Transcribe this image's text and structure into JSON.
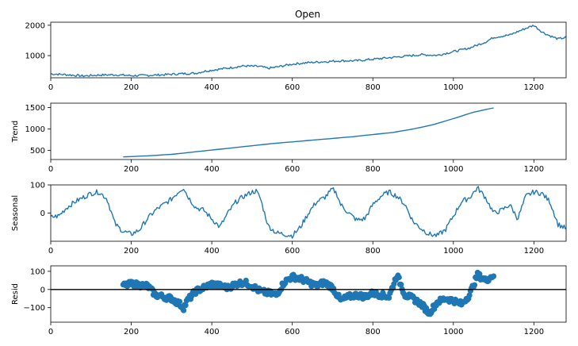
{
  "figure": {
    "title": "Open"
  },
  "colors": {
    "series": "#1f77b4",
    "axis": "#000000",
    "background": "#ffffff"
  },
  "chart_data": [
    {
      "id": "observed",
      "type": "line",
      "title": "Open",
      "xlabel": "",
      "ylabel": "",
      "xlim": [
        0,
        1280
      ],
      "ylim": [
        270,
        2100
      ],
      "xticks": [
        0,
        200,
        400,
        600,
        800,
        1000,
        1200
      ],
      "yticks": [
        1000,
        2000
      ],
      "grid": false,
      "noise": 35,
      "series": [
        {
          "x": [
            0,
            40,
            80,
            120,
            160,
            200,
            240,
            280,
            320,
            360,
            380,
            400,
            440,
            480,
            520,
            540,
            560,
            600,
            640,
            680,
            720,
            760,
            800,
            840,
            880,
            920,
            960,
            1000,
            1040,
            1080,
            1100,
            1140,
            1180,
            1200,
            1220,
            1240,
            1260,
            1280
          ],
          "values": [
            400,
            370,
            330,
            360,
            370,
            340,
            350,
            370,
            400,
            420,
            480,
            520,
            590,
            660,
            640,
            580,
            620,
            720,
            770,
            800,
            830,
            830,
            880,
            930,
            980,
            1030,
            1010,
            1130,
            1250,
            1450,
            1600,
            1680,
            1900,
            2000,
            1780,
            1650,
            1550,
            1600
          ]
        }
      ]
    },
    {
      "id": "trend",
      "type": "line",
      "title": "",
      "xlabel": "",
      "ylabel": "Trend",
      "xlim": [
        0,
        1280
      ],
      "ylim": [
        290,
        1600
      ],
      "xticks": [
        0,
        200,
        400,
        600,
        800,
        1000,
        1200
      ],
      "yticks": [
        500,
        1000,
        1500
      ],
      "grid": false,
      "noise": 0,
      "series": [
        {
          "x": [
            180,
            250,
            300,
            350,
            400,
            450,
            500,
            550,
            600,
            650,
            700,
            750,
            800,
            850,
            900,
            950,
            1000,
            1050,
            1100
          ],
          "values": [
            350,
            380,
            410,
            460,
            510,
            560,
            610,
            660,
            700,
            740,
            780,
            820,
            870,
            920,
            1000,
            1100,
            1240,
            1390,
            1490
          ]
        }
      ]
    },
    {
      "id": "seasonal",
      "type": "line",
      "title": "",
      "xlabel": "",
      "ylabel": "Seasonal",
      "xlim": [
        0,
        1280
      ],
      "ylim": [
        -100,
        100
      ],
      "xticks": [
        0,
        200,
        400,
        600,
        800,
        1000,
        1200
      ],
      "yticks": [
        0,
        100
      ],
      "grid": false,
      "noise": 9,
      "series": [
        {
          "x": [
            0,
            20,
            40,
            60,
            80,
            100,
            120,
            140,
            160,
            180,
            200,
            220,
            240,
            260,
            280,
            300,
            320,
            330,
            340,
            360,
            380,
            400,
            420,
            440,
            460,
            480,
            500,
            510,
            520,
            540,
            560,
            580,
            600,
            620,
            640,
            660,
            680,
            700,
            710,
            720,
            740,
            760,
            780,
            800,
            820,
            840,
            860,
            880,
            900,
            920,
            940,
            960,
            980,
            1000,
            1020,
            1040,
            1060,
            1080,
            1100,
            1120,
            1140,
            1160,
            1180,
            1200,
            1220,
            1240,
            1260,
            1280
          ],
          "values": [
            -15,
            -10,
            20,
            40,
            55,
            70,
            75,
            50,
            -40,
            -65,
            -75,
            -60,
            -20,
            10,
            30,
            50,
            80,
            90,
            60,
            20,
            10,
            -20,
            -50,
            0,
            40,
            60,
            75,
            78,
            55,
            -45,
            -70,
            -75,
            -80,
            -50,
            0,
            40,
            55,
            85,
            70,
            30,
            0,
            -25,
            -20,
            30,
            60,
            75,
            60,
            30,
            -30,
            -55,
            -75,
            -80,
            -60,
            -10,
            40,
            55,
            90,
            55,
            0,
            10,
            30,
            -20,
            60,
            75,
            70,
            40,
            -40,
            -55
          ]
        }
      ]
    },
    {
      "id": "resid",
      "type": "scatter",
      "title": "",
      "xlabel": "",
      "ylabel": "Resid",
      "xlim": [
        0,
        1280
      ],
      "ylim": [
        -180,
        130
      ],
      "xticks": [
        0,
        200,
        400,
        600,
        800,
        1000,
        1200
      ],
      "yticks": [
        -100,
        0,
        100
      ],
      "grid": false,
      "baseline": 0,
      "noise": 15,
      "series": [
        {
          "x": [
            180,
            200,
            220,
            240,
            260,
            280,
            300,
            320,
            330,
            340,
            360,
            380,
            400,
            420,
            440,
            460,
            480,
            500,
            520,
            540,
            560,
            580,
            600,
            620,
            640,
            660,
            680,
            700,
            720,
            740,
            760,
            780,
            800,
            820,
            840,
            860,
            880,
            900,
            920,
            940,
            960,
            980,
            1000,
            1020,
            1040,
            1060,
            1080,
            1100
          ],
          "values": [
            20,
            30,
            25,
            20,
            -30,
            -40,
            -50,
            -80,
            -100,
            -60,
            -10,
            10,
            30,
            20,
            10,
            30,
            40,
            20,
            -10,
            -20,
            -30,
            40,
            70,
            60,
            40,
            20,
            40,
            10,
            -60,
            -40,
            -30,
            -40,
            -20,
            -30,
            -40,
            80,
            -30,
            -50,
            -80,
            -130,
            -70,
            -50,
            -60,
            -80,
            -30,
            80,
            50,
            80
          ]
        }
      ]
    }
  ]
}
